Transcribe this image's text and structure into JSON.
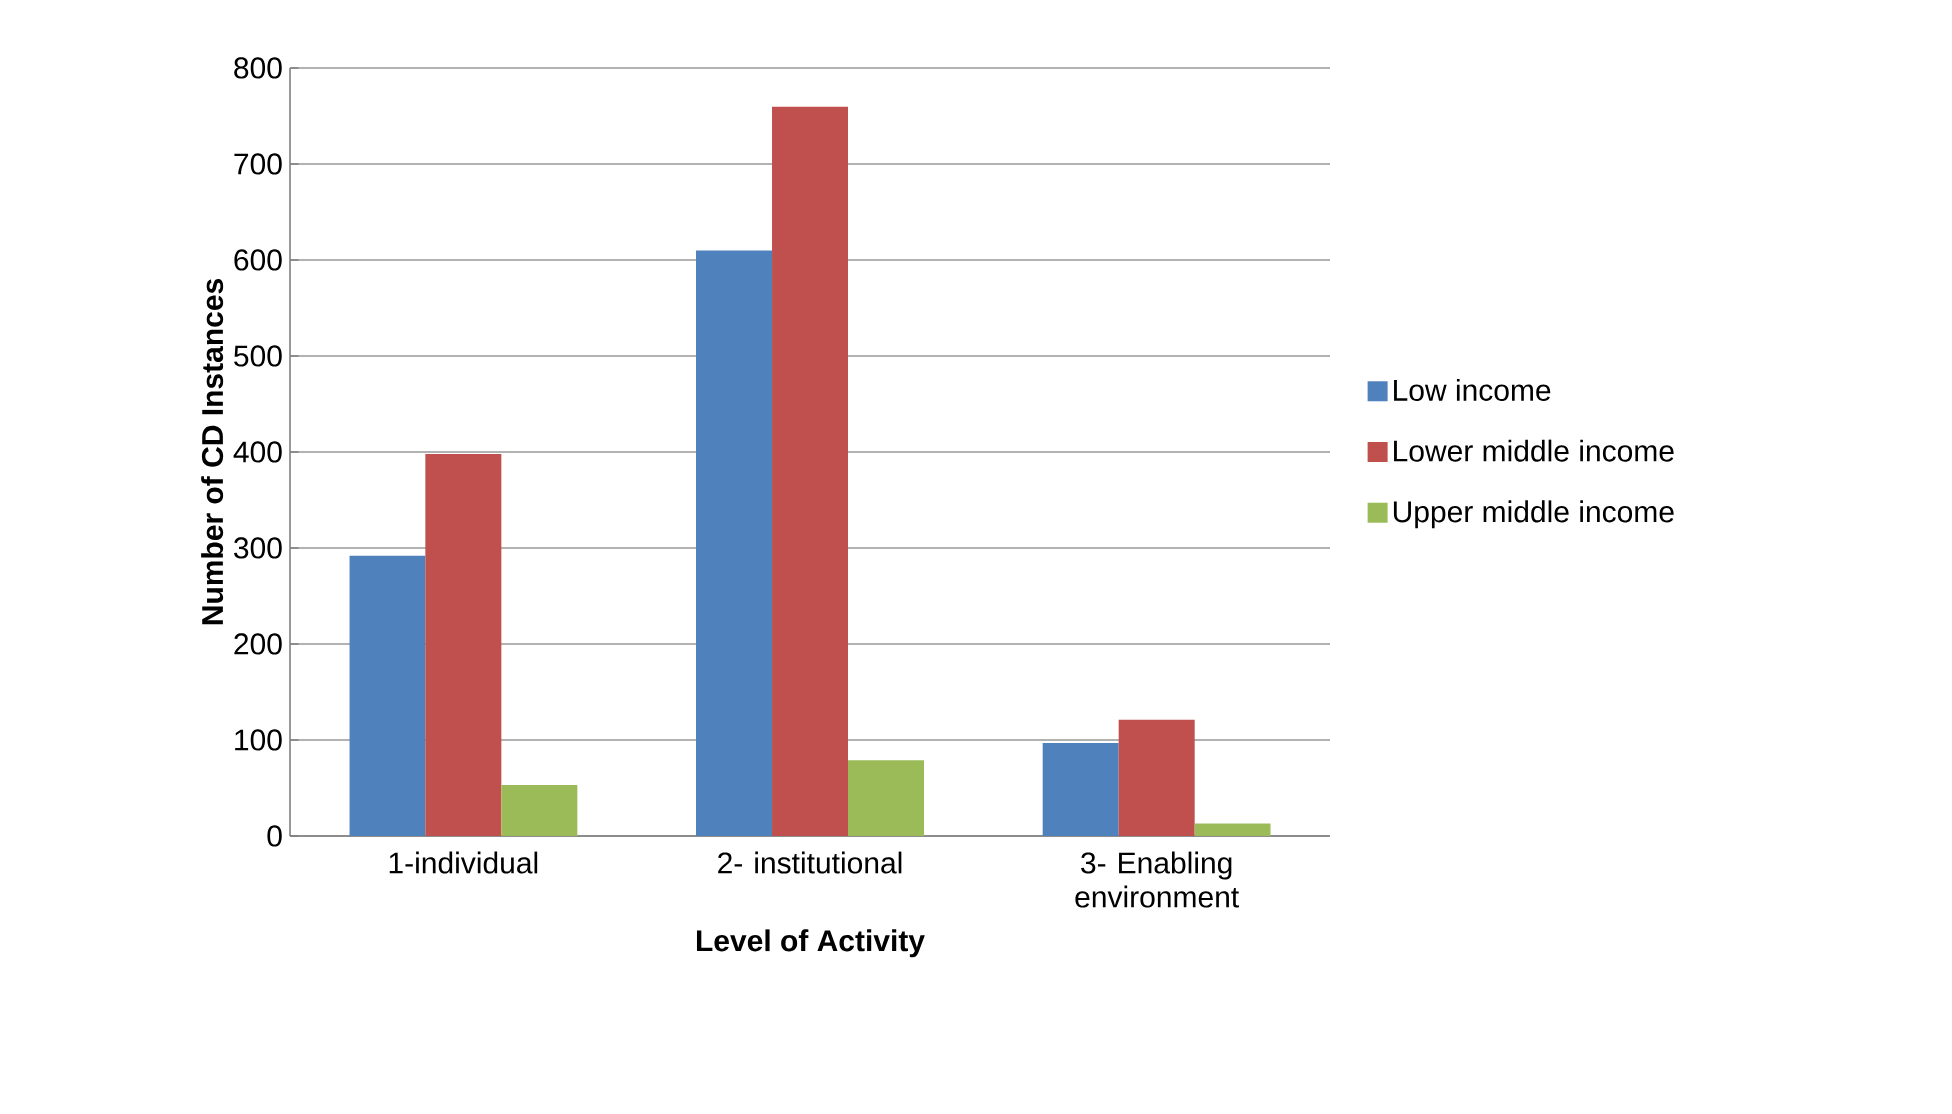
{
  "chart_data": {
    "type": "bar",
    "xlabel": "Level of Activity",
    "ylabel": "Number of CD Instances",
    "categories": [
      "1-individual",
      "2- institutional",
      "3- Enabling environment"
    ],
    "series": [
      {
        "name": "Low income",
        "color": "#4f81bd",
        "values": [
          292,
          610,
          97
        ]
      },
      {
        "name": "Lower middle income",
        "color": "#c0504d",
        "values": [
          398,
          760,
          121
        ]
      },
      {
        "name": "Upper middle income",
        "color": "#9bbb59",
        "values": [
          53,
          79,
          13
        ]
      }
    ],
    "ylim": [
      0,
      800
    ],
    "yticks": [
      0,
      100,
      200,
      300,
      400,
      500,
      600,
      700,
      800
    ],
    "grid": "y",
    "legend": "right"
  }
}
